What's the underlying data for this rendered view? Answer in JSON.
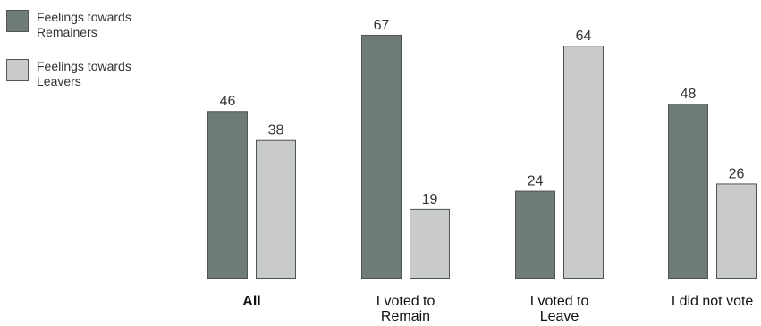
{
  "chart_data": {
    "type": "bar",
    "title": "",
    "xlabel": "",
    "ylabel": "",
    "ylim": [
      0,
      70
    ],
    "grid": false,
    "legend_placement": "top-left",
    "categories": [
      {
        "lines": [
          "All"
        ],
        "bold": true
      },
      {
        "lines": [
          "I voted to",
          "Remain"
        ],
        "bold": false
      },
      {
        "lines": [
          "I voted to",
          "Leave"
        ],
        "bold": false
      },
      {
        "lines": [
          "I did not vote"
        ],
        "bold": false
      }
    ],
    "series": [
      {
        "name_lines": [
          "Feelings towards",
          "Remainers"
        ],
        "color": "#6e7b78",
        "values": [
          46,
          67,
          24,
          48
        ]
      },
      {
        "name_lines": [
          "Feelings towards",
          "Leavers"
        ],
        "color": "#c9cbc9",
        "values": [
          38,
          19,
          64,
          26
        ]
      }
    ]
  }
}
